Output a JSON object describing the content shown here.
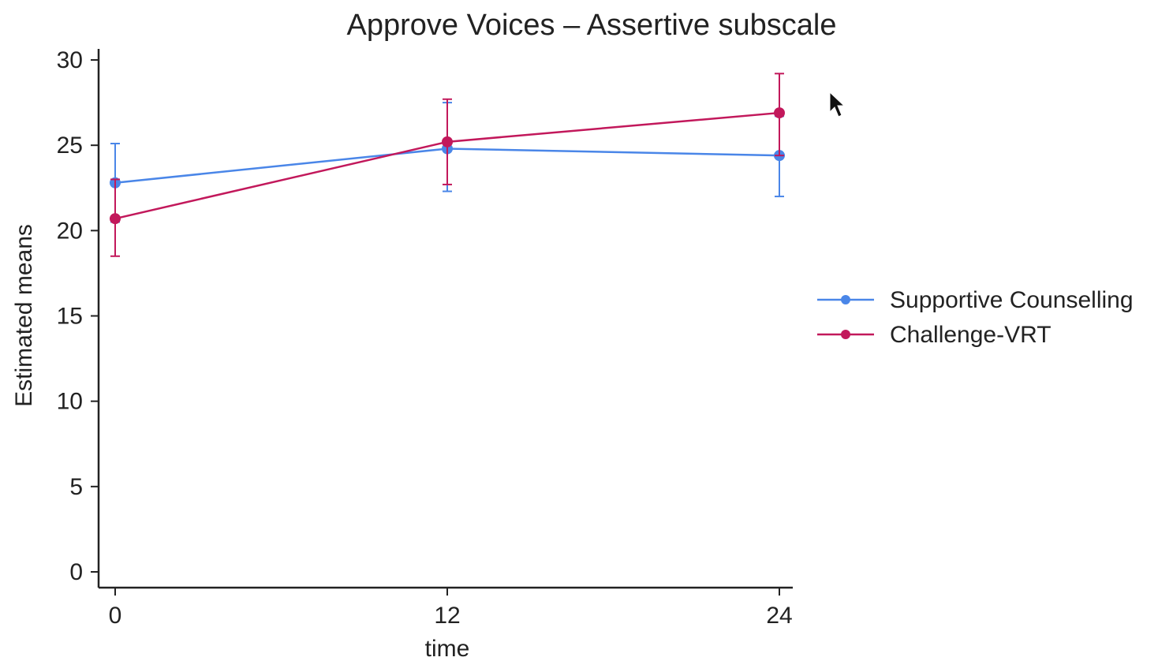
{
  "chart_data": {
    "type": "line",
    "title": "Approve Voices – Assertive subscale",
    "xlabel": "time",
    "ylabel": "Estimated means",
    "x": [
      0,
      12,
      24
    ],
    "x_tick_labels": [
      "0",
      "12",
      "24"
    ],
    "ylim": [
      0,
      30
    ],
    "y_ticks": [
      0,
      5,
      10,
      15,
      20,
      25,
      30
    ],
    "grid": false,
    "legend_position": "right",
    "series": [
      {
        "name": "Supportive Counselling",
        "color": "#4a86e8",
        "values": [
          22.8,
          24.8,
          24.4
        ],
        "ci_low": [
          20.5,
          22.3,
          22.0
        ],
        "ci_high": [
          25.1,
          27.5,
          26.7
        ]
      },
      {
        "name": "Challenge-VRT",
        "color": "#c2185b",
        "values": [
          20.7,
          25.2,
          26.9
        ],
        "ci_low": [
          18.5,
          22.7,
          24.4
        ],
        "ci_high": [
          23.0,
          27.7,
          29.2
        ]
      }
    ]
  },
  "icons": {
    "cursor": "mouse-pointer-icon"
  }
}
